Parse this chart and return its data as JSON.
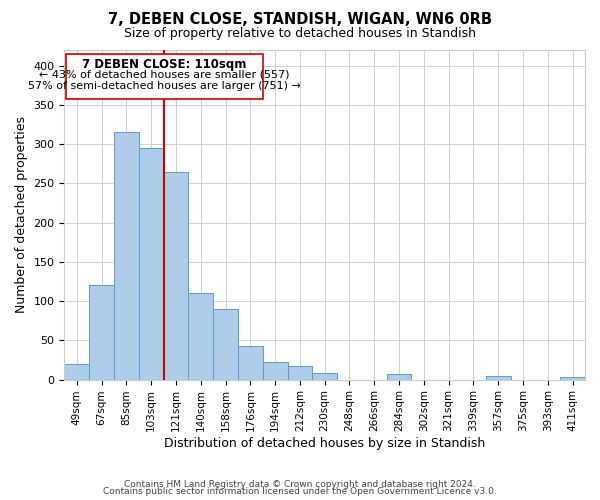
{
  "title": "7, DEBEN CLOSE, STANDISH, WIGAN, WN6 0RB",
  "subtitle": "Size of property relative to detached houses in Standish",
  "xlabel": "Distribution of detached houses by size in Standish",
  "ylabel": "Number of detached properties",
  "bar_color": "#aecde8",
  "bar_edge_color": "#5b9bd5",
  "annotation_line_color": "#cc0000",
  "annotation_text_line1": "7 DEBEN CLOSE: 110sqm",
  "annotation_text_line2": "← 43% of detached houses are smaller (557)",
  "annotation_text_line3": "57% of semi-detached houses are larger (751) →",
  "annotation_box_color": "#ffffff",
  "annotation_box_edge": "#cc0000",
  "categories": [
    "49sqm",
    "67sqm",
    "85sqm",
    "103sqm",
    "121sqm",
    "140sqm",
    "158sqm",
    "176sqm",
    "194sqm",
    "212sqm",
    "230sqm",
    "248sqm",
    "266sqm",
    "284sqm",
    "302sqm",
    "321sqm",
    "339sqm",
    "357sqm",
    "375sqm",
    "393sqm",
    "411sqm"
  ],
  "values": [
    20,
    120,
    315,
    295,
    265,
    110,
    90,
    43,
    22,
    17,
    8,
    0,
    0,
    7,
    0,
    0,
    0,
    5,
    0,
    0,
    3
  ],
  "ylim": [
    0,
    420
  ],
  "yticks": [
    0,
    50,
    100,
    150,
    200,
    250,
    300,
    350,
    400
  ],
  "footer_line1": "Contains HM Land Registry data © Crown copyright and database right 2024.",
  "footer_line2": "Contains public sector information licensed under the Open Government Licence v3.0."
}
